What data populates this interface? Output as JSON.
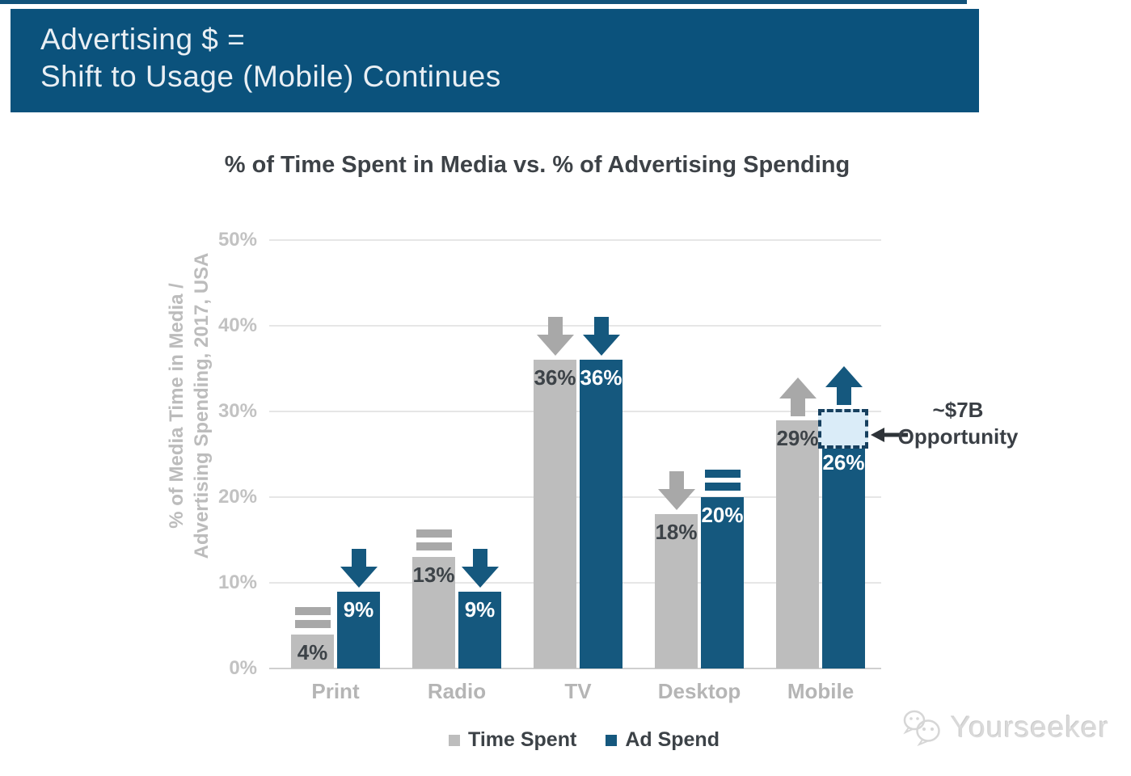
{
  "top_banner": {
    "line1": "Advertising $ =",
    "line2": "Shift to Usage (Mobile) Continues",
    "bg_color": "#0b527c",
    "text_color": "#e9eff4"
  },
  "chart_data": {
    "type": "bar",
    "title": "% of Time Spent in Media vs. % of Advertising Spending",
    "categories": [
      "Print",
      "Radio",
      "TV",
      "Desktop",
      "Mobile"
    ],
    "series": [
      {
        "name": "Time Spent",
        "color": "#bdbdbd",
        "label_color": "#3d4348",
        "icon_color": "#a8a8a8",
        "values": [
          4,
          13,
          36,
          18,
          29
        ],
        "value_labels": [
          "4%",
          "13%",
          "36%",
          "18%",
          "29%"
        ],
        "trend_icons": [
          "flat",
          "flat",
          "down",
          "down",
          "up"
        ]
      },
      {
        "name": "Ad Spend",
        "color": "#15587e",
        "label_color": "#ffffff",
        "icon_color": "#15587e",
        "values": [
          9,
          9,
          36,
          20,
          26
        ],
        "value_labels": [
          "9%",
          "9%",
          "36%",
          "20%",
          "26%"
        ],
        "trend_icons": [
          "down",
          "down",
          "down",
          "flat",
          "up"
        ]
      }
    ],
    "ylabel_line1": "% of Media Time in Media /",
    "ylabel_line2": "Advertising Spending, 2017, USA",
    "ylim": [
      0,
      50
    ],
    "ytick_step": 10,
    "ytick_labels": [
      "0%",
      "10%",
      "20%",
      "30%",
      "40%",
      "50%"
    ],
    "grid": true,
    "legend_position": "bottom",
    "annotation": {
      "line1": "~$7B",
      "line2": "Opportunity",
      "category": "Mobile",
      "series": "Ad Spend",
      "box_from_value": 26,
      "box_to_value": 30.3,
      "box_fill": "#daecf8",
      "box_border": "#16405f"
    }
  },
  "watermark": {
    "text": "Yourseeker"
  }
}
